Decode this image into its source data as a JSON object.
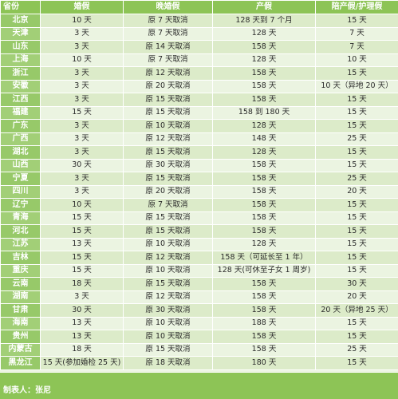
{
  "colors": {
    "header_bg": "#8dc456",
    "province_bg": "#97c969",
    "province_bg_alt": "#a2cf77",
    "row_odd": "#dcebc9",
    "row_even": "#ebf4e1",
    "footer_bg": "#8dc456"
  },
  "table": {
    "headers": {
      "province": "省份",
      "marriage": "婚假",
      "late_marriage": "晚婚假",
      "maternity": "产假",
      "paternity": "陪产假/护理假"
    },
    "rows": [
      {
        "province": "北京",
        "marriage": "10 天",
        "late_marriage": "原 7 天取消",
        "maternity": "128 天到 7 个月",
        "paternity": "15 天"
      },
      {
        "province": "天津",
        "marriage": "3 天",
        "late_marriage": "原 7 天取消",
        "maternity": "128 天",
        "paternity": "7 天"
      },
      {
        "province": "山东",
        "marriage": "3 天",
        "late_marriage": "原 14 天取消",
        "maternity": "158 天",
        "paternity": "7 天"
      },
      {
        "province": "上海",
        "marriage": "10 天",
        "late_marriage": "原 7 天取消",
        "maternity": "128 天",
        "paternity": "10 天"
      },
      {
        "province": "浙江",
        "marriage": "3 天",
        "late_marriage": "原 12 天取消",
        "maternity": "158 天",
        "paternity": "15 天"
      },
      {
        "province": "安徽",
        "marriage": "3 天",
        "late_marriage": "原 20 天取消",
        "maternity": "158 天",
        "paternity": "10 天（异地 20 天）"
      },
      {
        "province": "江西",
        "marriage": "3 天",
        "late_marriage": "原 15 天取消",
        "maternity": "158 天",
        "paternity": "15 天"
      },
      {
        "province": "福建",
        "marriage": "15 天",
        "late_marriage": "原 15 天取消",
        "maternity": "158 到 180 天",
        "paternity": "15 天"
      },
      {
        "province": "广东",
        "marriage": "3 天",
        "late_marriage": "原 10 天取消",
        "maternity": "128 天",
        "paternity": "15 天"
      },
      {
        "province": "广西",
        "marriage": "3 天",
        "late_marriage": "原 12 天取消",
        "maternity": "148 天",
        "paternity": "25 天"
      },
      {
        "province": "湖北",
        "marriage": "3 天",
        "late_marriage": "原 15 天取消",
        "maternity": "128 天",
        "paternity": "15 天"
      },
      {
        "province": "山西",
        "marriage": "30 天",
        "late_marriage": "原 30 天取消",
        "maternity": "158 天",
        "paternity": "15 天"
      },
      {
        "province": "宁夏",
        "marriage": "3 天",
        "late_marriage": "原 15 天取消",
        "maternity": "158 天",
        "paternity": "25 天"
      },
      {
        "province": "四川",
        "marriage": "3 天",
        "late_marriage": "原 20 天取消",
        "maternity": "158 天",
        "paternity": "20 天"
      },
      {
        "province": "辽宁",
        "marriage": "10 天",
        "late_marriage": "原 7 天取消",
        "maternity": "158 天",
        "paternity": "15 天"
      },
      {
        "province": "青海",
        "marriage": "15 天",
        "late_marriage": "原 15 天取消",
        "maternity": "158 天",
        "paternity": "15 天"
      },
      {
        "province": "河北",
        "marriage": "15 天",
        "late_marriage": "原 15 天取消",
        "maternity": "158 天",
        "paternity": "15 天"
      },
      {
        "province": "江苏",
        "marriage": "13 天",
        "late_marriage": "原 10 天取消",
        "maternity": "128 天",
        "paternity": "15 天"
      },
      {
        "province": "吉林",
        "marriage": "15 天",
        "late_marriage": "原 12 天取消",
        "maternity": "158 天（可延长至 1 年）",
        "paternity": "15 天"
      },
      {
        "province": "重庆",
        "marriage": "15 天",
        "late_marriage": "原 10 天取消",
        "maternity": "128 天(可休至子女 1 周岁)",
        "paternity": "15 天"
      },
      {
        "province": "云南",
        "marriage": "18 天",
        "late_marriage": "原 15 天取消",
        "maternity": "158 天",
        "paternity": "30 天"
      },
      {
        "province": "湖南",
        "marriage": "3 天",
        "late_marriage": "原 12 天取消",
        "maternity": "158 天",
        "paternity": "20 天"
      },
      {
        "province": "甘肃",
        "marriage": "30 天",
        "late_marriage": "原 30 天取消",
        "maternity": "158 天",
        "paternity": "20 天（异地 25 天）"
      },
      {
        "province": "海南",
        "marriage": "13 天",
        "late_marriage": "原 10 天取消",
        "maternity": "188 天",
        "paternity": "15 天"
      },
      {
        "province": "贵州",
        "marriage": "13 天",
        "late_marriage": "原 10 天取消",
        "maternity": "158 天",
        "paternity": "15 天"
      },
      {
        "province": "内蒙古",
        "marriage": "18 天",
        "late_marriage": "原 15 天取消",
        "maternity": "158 天",
        "paternity": "25 天"
      },
      {
        "province": "黑龙江",
        "marriage": "15 天(参加婚检 25 天)",
        "late_marriage": "原 18 天取消",
        "maternity": "180 天",
        "paternity": "15 天"
      }
    ]
  },
  "footer": {
    "author": "制表人：张尼"
  }
}
